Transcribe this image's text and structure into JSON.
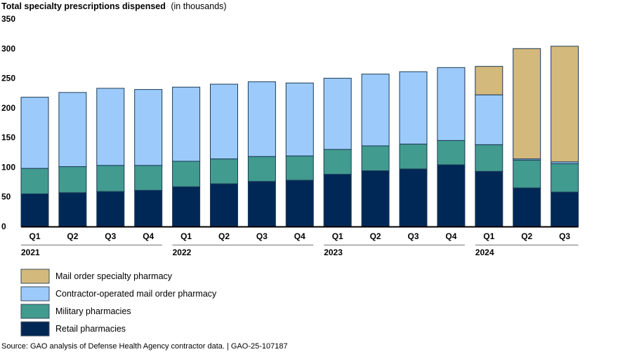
{
  "chart_data": {
    "type": "bar",
    "stacked": true,
    "title": "Total specialty prescriptions dispensed",
    "title_suffix": "(in thousands)",
    "xlabel": "",
    "ylabel": "",
    "ylim": [
      0,
      350
    ],
    "yticks": [
      0,
      50,
      100,
      150,
      200,
      250,
      300,
      350
    ],
    "grid": false,
    "legend_position": "bottom-left",
    "categories": [
      "Q1",
      "Q2",
      "Q3",
      "Q4",
      "Q1",
      "Q2",
      "Q3",
      "Q4",
      "Q1",
      "Q2",
      "Q3",
      "Q4",
      "Q1",
      "Q2",
      "Q3"
    ],
    "year_groups": [
      {
        "label": "2021",
        "start": 0,
        "end": 3
      },
      {
        "label": "2022",
        "start": 4,
        "end": 7
      },
      {
        "label": "2023",
        "start": 8,
        "end": 11
      },
      {
        "label": "2024",
        "start": 12,
        "end": 14
      }
    ],
    "series": [
      {
        "name": "Retail pharmacies",
        "color": "#002856",
        "values": [
          55,
          57,
          59,
          61,
          67,
          72,
          76,
          78,
          88,
          94,
          97,
          104,
          93,
          65,
          58
        ]
      },
      {
        "name": "Military pharmacies",
        "color": "#419b8f",
        "values": [
          43,
          44,
          44,
          42,
          43,
          42,
          42,
          41,
          42,
          42,
          42,
          41,
          45,
          47,
          48
        ]
      },
      {
        "name": "Contractor-operated mail order pharmacy",
        "color": "#9ccbfb",
        "values": [
          120,
          125,
          130,
          128,
          125,
          126,
          126,
          123,
          120,
          121,
          122,
          123,
          84,
          2,
          3
        ]
      },
      {
        "name": "Mail order specialty pharmacy",
        "color": "#d3b97c",
        "values": [
          0,
          0,
          0,
          0,
          0,
          0,
          0,
          0,
          0,
          0,
          0,
          0,
          48,
          186,
          195
        ]
      }
    ],
    "legend_order": [
      "Mail order specialty pharmacy",
      "Contractor-operated mail order pharmacy",
      "Military pharmacies",
      "Retail pharmacies"
    ]
  },
  "source_text": "Source: GAO analysis of Defense Health Agency contractor data.  |  GAO-25-107187"
}
